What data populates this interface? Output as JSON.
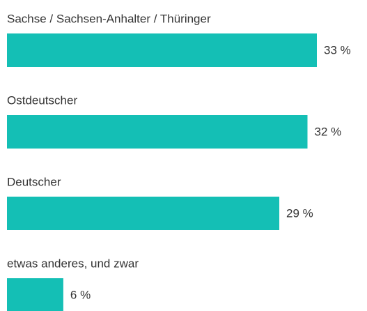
{
  "chart_data": {
    "type": "bar",
    "orientation": "horizontal",
    "categories": [
      "Sachse / Sachsen-Anhalter / Thüringer",
      "Ostdeutscher",
      "Deutscher",
      "etwas anderes, und zwar"
    ],
    "values": [
      33,
      32,
      29,
      6
    ],
    "value_labels": [
      "33 %",
      "32 %",
      "29 %",
      "6 %"
    ],
    "color": "#14bfb5"
  }
}
